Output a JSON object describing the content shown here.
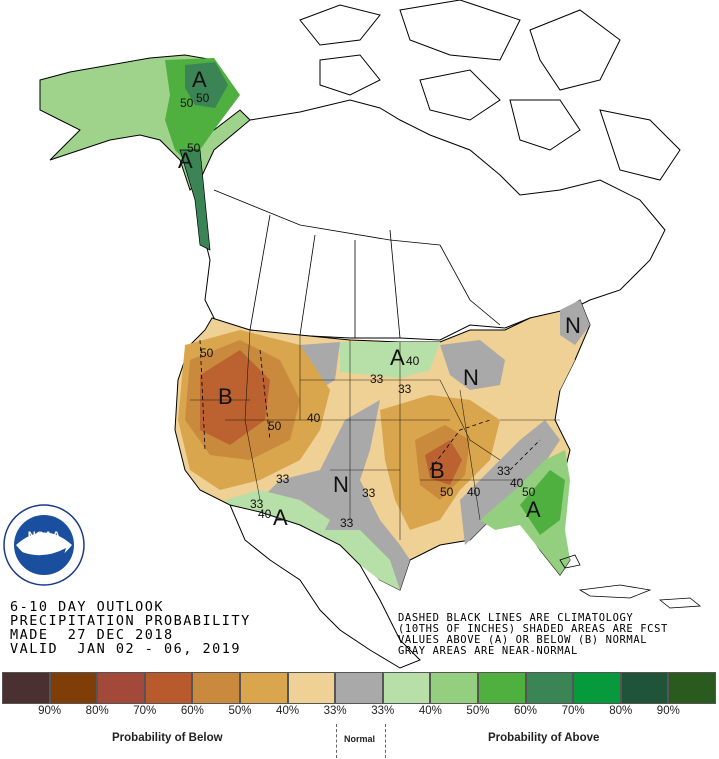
{
  "title_lines": {
    "line1": "6-10 DAY OUTLOOK",
    "line2": "PRECIPITATION PROBABILITY",
    "line3": "MADE  27 DEC 2018",
    "line4": "VALID  JAN 02 - 06, 2019"
  },
  "notes": {
    "line1": "DASHED BLACK LINES ARE CLIMATOLOGY",
    "line2": "(10THS OF INCHES) SHADED AREAS ARE FCST",
    "line3": "VALUES ABOVE (A) OR BELOW (B) NORMAL",
    "line4": "GRAY AREAS ARE NEAR-NORMAL"
  },
  "logo": {
    "text": "NOAA",
    "ring_text": "NATIONAL OCEANIC AND ATMOSPHERIC ADMINISTRATION · U.S. DEPARTMENT OF COMMERCE"
  },
  "map_labels": {
    "ak_A1": "A",
    "ak_A2": "A",
    "ak_50a": "50",
    "ak_50b": "50",
    "ak_50c": "50",
    "west_B": "B",
    "west_50a": "50",
    "west_50b": "50",
    "west_40": "40",
    "sw_33a": "33",
    "sw_33b": "33",
    "sw_40": "40",
    "sw_A": "A",
    "c_N": "N",
    "c_33a": "33",
    "c_33b": "33",
    "c_33c": "33",
    "ne_A": "A",
    "ne_40": "40",
    "ne_33": "33",
    "gl_N": "N",
    "se_B": "B",
    "se_50": "50",
    "se_40a": "40",
    "se_33": "33",
    "se_40b": "40",
    "se_50b": "50",
    "se_A": "A",
    "ne_N": "N"
  },
  "legend": {
    "colors": [
      "#4a3030",
      "#7f3d08",
      "#a3493a",
      "#b85a2e",
      "#c98a3e",
      "#d9a64d",
      "#efd095",
      "#a9a9a9",
      "#b7dfa8",
      "#94cf7f",
      "#4fb040",
      "#3b8456",
      "#069a3c",
      "#1f5438",
      "#2a5a1e"
    ],
    "percents": [
      "90%",
      "80%",
      "70%",
      "60%",
      "50%",
      "40%",
      "33%",
      "33%",
      "40%",
      "50%",
      "60%",
      "70%",
      "80%",
      "90%"
    ],
    "below_label": "Probability of Below",
    "normal_label": "Normal",
    "above_label": "Probability of Above"
  }
}
